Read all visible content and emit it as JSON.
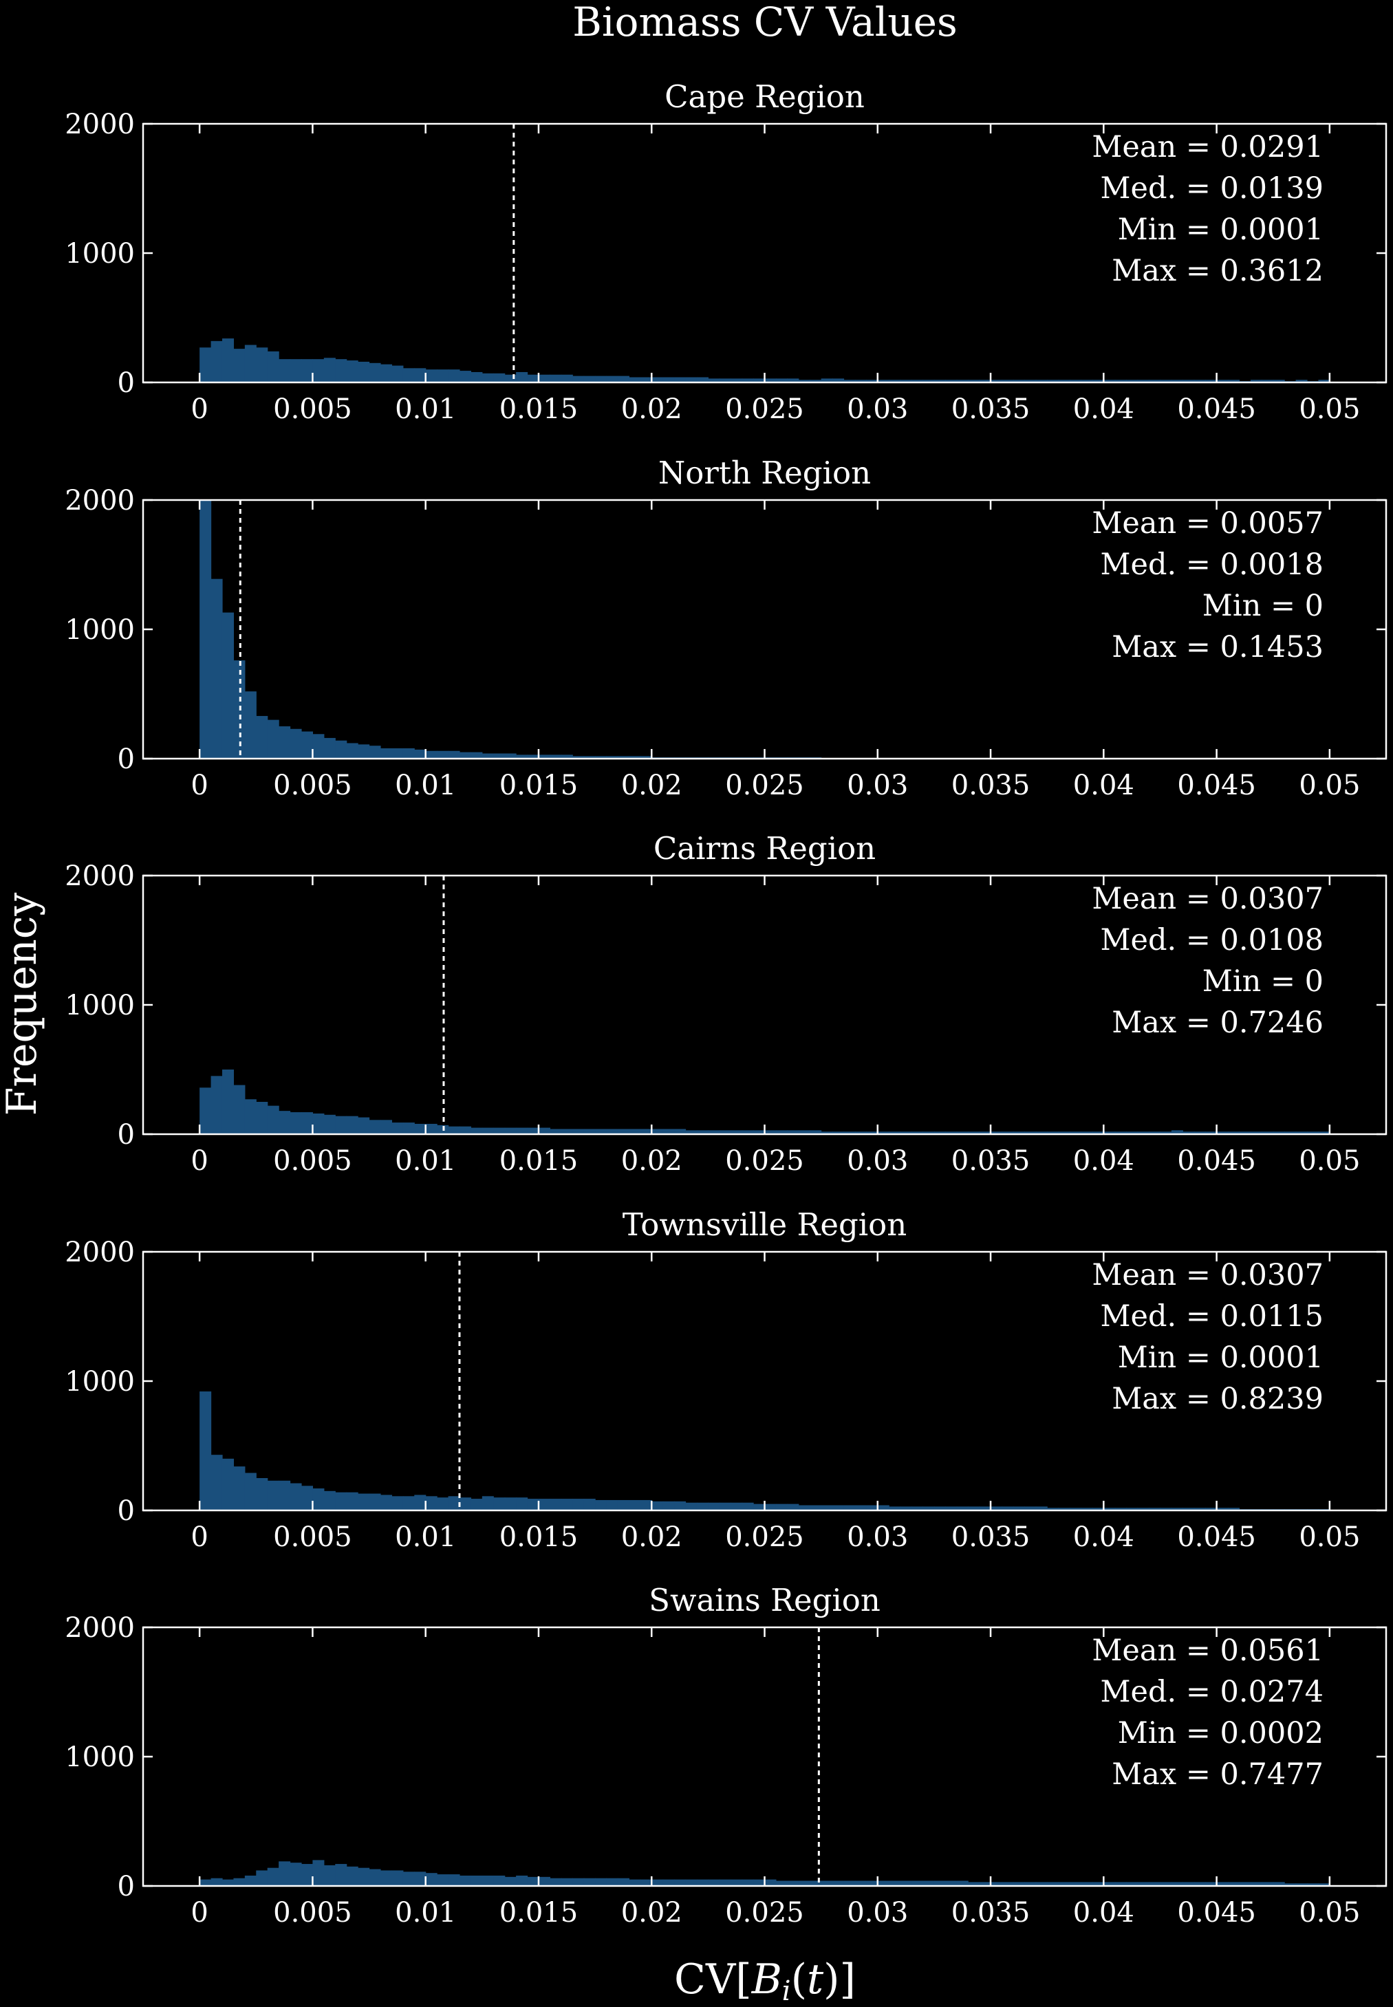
{
  "figure": {
    "title": "Biomass CV Values",
    "ylabel": "Frequency",
    "xlabel": "CV[B_i(t)]",
    "xlabel_parts": {
      "prefix": "CV[",
      "var": "B",
      "sub": "i",
      "mid": "(",
      "t": "t",
      "suffix": ")]"
    }
  },
  "colors": {
    "background": "#000000",
    "axes": "#ffffff",
    "bar": "#1a4f7c",
    "median_line": "#ffffff"
  },
  "chart_data": [
    {
      "type": "bar",
      "title": "Cape Region",
      "xlim": [
        -0.0025,
        0.0525
      ],
      "ylim": [
        0,
        2000
      ],
      "xticks": [
        0,
        0.005,
        0.01,
        0.015,
        0.02,
        0.025,
        0.03,
        0.035,
        0.04,
        0.045,
        0.05
      ],
      "xtick_labels": [
        "0",
        "0.005",
        "0.01",
        "0.015",
        "0.02",
        "0.025",
        "0.03",
        "0.035",
        "0.04",
        "0.045",
        "0.05"
      ],
      "yticks": [
        0,
        1000,
        2000
      ],
      "ytick_labels": [
        "0",
        "1000",
        "2000"
      ],
      "bin_width": 0.0005,
      "bin_start": 0,
      "counts": [
        270,
        320,
        340,
        260,
        290,
        270,
        240,
        180,
        180,
        180,
        180,
        190,
        180,
        170,
        160,
        150,
        140,
        130,
        110,
        110,
        100,
        100,
        100,
        90,
        80,
        70,
        70,
        60,
        80,
        60,
        60,
        60,
        60,
        50,
        50,
        50,
        50,
        50,
        40,
        40,
        40,
        40,
        40,
        40,
        40,
        30,
        30,
        30,
        30,
        30,
        30,
        30,
        30,
        20,
        20,
        30,
        30,
        20,
        20,
        20,
        20,
        20,
        20,
        20,
        20,
        20,
        20,
        20,
        20,
        20,
        20,
        20,
        20,
        20,
        20,
        20,
        20,
        20,
        20,
        20,
        20,
        20,
        20,
        20,
        20,
        20,
        20,
        20,
        20,
        20,
        20,
        20,
        10,
        20,
        20,
        20,
        10,
        20,
        10,
        20
      ],
      "median": 0.0139,
      "stats": [
        "Mean = 0.0291",
        "Med. = 0.0139",
        "Min = 0.0001",
        "Max = 0.3612"
      ]
    },
    {
      "type": "bar",
      "title": "North Region",
      "xlim": [
        -0.0025,
        0.0525
      ],
      "ylim": [
        0,
        2000
      ],
      "xticks": [
        0,
        0.005,
        0.01,
        0.015,
        0.02,
        0.025,
        0.03,
        0.035,
        0.04,
        0.045,
        0.05
      ],
      "xtick_labels": [
        "0",
        "0.005",
        "0.01",
        "0.015",
        "0.02",
        "0.025",
        "0.03",
        "0.035",
        "0.04",
        "0.045",
        "0.05"
      ],
      "yticks": [
        0,
        1000,
        2000
      ],
      "ytick_labels": [
        "0",
        "1000",
        "2000"
      ],
      "bin_width": 0.0005,
      "bin_start": 0,
      "counts": [
        2000,
        1390,
        1130,
        760,
        520,
        330,
        300,
        250,
        230,
        210,
        190,
        160,
        140,
        120,
        110,
        100,
        80,
        80,
        80,
        70,
        60,
        60,
        60,
        50,
        50,
        40,
        40,
        40,
        30,
        30,
        30,
        30,
        30,
        20,
        20,
        20,
        20,
        20,
        20,
        20,
        10,
        10,
        10,
        10,
        10,
        10,
        10,
        10,
        10,
        10,
        10,
        10,
        10,
        10,
        10,
        5,
        5,
        5,
        5,
        5,
        5,
        5,
        5,
        5,
        5,
        5,
        5,
        5,
        5,
        5,
        5,
        5,
        5,
        5,
        5,
        5,
        5,
        5,
        5,
        5,
        5,
        5,
        5,
        5,
        5,
        5,
        5,
        5,
        5,
        5,
        5,
        5,
        5,
        5,
        5,
        5,
        5,
        5,
        5,
        5
      ],
      "median": 0.0018,
      "stats": [
        "Mean = 0.0057",
        "Med. = 0.0018",
        "Min = 0",
        "Max = 0.1453"
      ]
    },
    {
      "type": "bar",
      "title": "Cairns Region",
      "xlim": [
        -0.0025,
        0.0525
      ],
      "ylim": [
        0,
        2000
      ],
      "xticks": [
        0,
        0.005,
        0.01,
        0.015,
        0.02,
        0.025,
        0.03,
        0.035,
        0.04,
        0.045,
        0.05
      ],
      "xtick_labels": [
        "0",
        "0.005",
        "0.01",
        "0.015",
        "0.02",
        "0.025",
        "0.03",
        "0.035",
        "0.04",
        "0.045",
        "0.05"
      ],
      "yticks": [
        0,
        1000,
        2000
      ],
      "ytick_labels": [
        "0",
        "1000",
        "2000"
      ],
      "bin_width": 0.0005,
      "bin_start": 0,
      "counts": [
        360,
        450,
        500,
        380,
        270,
        250,
        220,
        180,
        170,
        170,
        160,
        150,
        140,
        140,
        130,
        110,
        110,
        90,
        90,
        80,
        80,
        70,
        60,
        60,
        50,
        50,
        50,
        50,
        50,
        50,
        50,
        40,
        40,
        40,
        40,
        40,
        40,
        40,
        40,
        40,
        40,
        40,
        40,
        30,
        30,
        30,
        30,
        30,
        30,
        30,
        30,
        30,
        30,
        30,
        30,
        20,
        20,
        20,
        20,
        20,
        20,
        20,
        20,
        20,
        20,
        20,
        20,
        20,
        20,
        20,
        20,
        20,
        20,
        20,
        20,
        20,
        20,
        20,
        20,
        20,
        20,
        20,
        20,
        20,
        20,
        20,
        30,
        20,
        20,
        20,
        20,
        20,
        20,
        20,
        20,
        20,
        20,
        20,
        20,
        20
      ],
      "median": 0.0108,
      "stats": [
        "Mean = 0.0307",
        "Med. = 0.0108",
        "Min = 0",
        "Max = 0.7246"
      ]
    },
    {
      "type": "bar",
      "title": "Townsville Region",
      "xlim": [
        -0.0025,
        0.0525
      ],
      "ylim": [
        0,
        2000
      ],
      "xticks": [
        0,
        0.005,
        0.01,
        0.015,
        0.02,
        0.025,
        0.03,
        0.035,
        0.04,
        0.045,
        0.05
      ],
      "xtick_labels": [
        "0",
        "0.005",
        "0.01",
        "0.015",
        "0.02",
        "0.025",
        "0.03",
        "0.035",
        "0.04",
        "0.045",
        "0.05"
      ],
      "yticks": [
        0,
        1000,
        2000
      ],
      "ytick_labels": [
        "0",
        "1000",
        "2000"
      ],
      "bin_width": 0.0005,
      "bin_start": 0,
      "counts": [
        920,
        430,
        400,
        340,
        290,
        250,
        230,
        230,
        210,
        190,
        170,
        150,
        140,
        140,
        130,
        130,
        120,
        110,
        110,
        120,
        110,
        100,
        110,
        100,
        90,
        110,
        100,
        100,
        100,
        90,
        90,
        90,
        90,
        90,
        90,
        80,
        80,
        80,
        80,
        80,
        70,
        70,
        70,
        60,
        60,
        60,
        60,
        60,
        60,
        50,
        50,
        50,
        50,
        40,
        40,
        40,
        40,
        40,
        40,
        40,
        40,
        30,
        30,
        30,
        30,
        30,
        30,
        30,
        30,
        30,
        30,
        30,
        30,
        30,
        30,
        20,
        20,
        20,
        20,
        20,
        20,
        20,
        20,
        20,
        20,
        20,
        20,
        20,
        20,
        20,
        20,
        20,
        10,
        10,
        10,
        10,
        10,
        10,
        10,
        10
      ],
      "median": 0.0115,
      "stats": [
        "Mean = 0.0307",
        "Med. = 0.0115",
        "Min = 0.0001",
        "Max = 0.8239"
      ]
    },
    {
      "type": "bar",
      "title": "Swains Region",
      "xlim": [
        -0.0025,
        0.0525
      ],
      "ylim": [
        0,
        2000
      ],
      "xticks": [
        0,
        0.005,
        0.01,
        0.015,
        0.02,
        0.025,
        0.03,
        0.035,
        0.04,
        0.045,
        0.05
      ],
      "xtick_labels": [
        "0",
        "0.005",
        "0.01",
        "0.015",
        "0.02",
        "0.025",
        "0.03",
        "0.035",
        "0.04",
        "0.045",
        "0.05"
      ],
      "yticks": [
        0,
        1000,
        2000
      ],
      "ytick_labels": [
        "0",
        "1000",
        "2000"
      ],
      "bin_width": 0.0005,
      "bin_start": 0,
      "counts": [
        50,
        60,
        50,
        60,
        80,
        120,
        140,
        190,
        180,
        170,
        200,
        160,
        170,
        150,
        140,
        130,
        120,
        120,
        110,
        110,
        100,
        90,
        90,
        80,
        80,
        80,
        80,
        70,
        80,
        70,
        70,
        60,
        60,
        60,
        60,
        60,
        60,
        60,
        50,
        50,
        50,
        50,
        50,
        50,
        50,
        50,
        50,
        50,
        50,
        50,
        50,
        40,
        40,
        40,
        40,
        40,
        40,
        40,
        40,
        40,
        40,
        40,
        40,
        40,
        40,
        40,
        40,
        40,
        30,
        30,
        30,
        30,
        30,
        30,
        30,
        30,
        30,
        30,
        30,
        30,
        30,
        30,
        30,
        30,
        30,
        30,
        30,
        30,
        30,
        30,
        30,
        30,
        30,
        30,
        30,
        30,
        20,
        20,
        20,
        20
      ],
      "median": 0.0274,
      "stats": [
        "Mean = 0.0561",
        "Med. = 0.0274",
        "Min = 0.0002",
        "Max = 0.7477"
      ]
    }
  ]
}
